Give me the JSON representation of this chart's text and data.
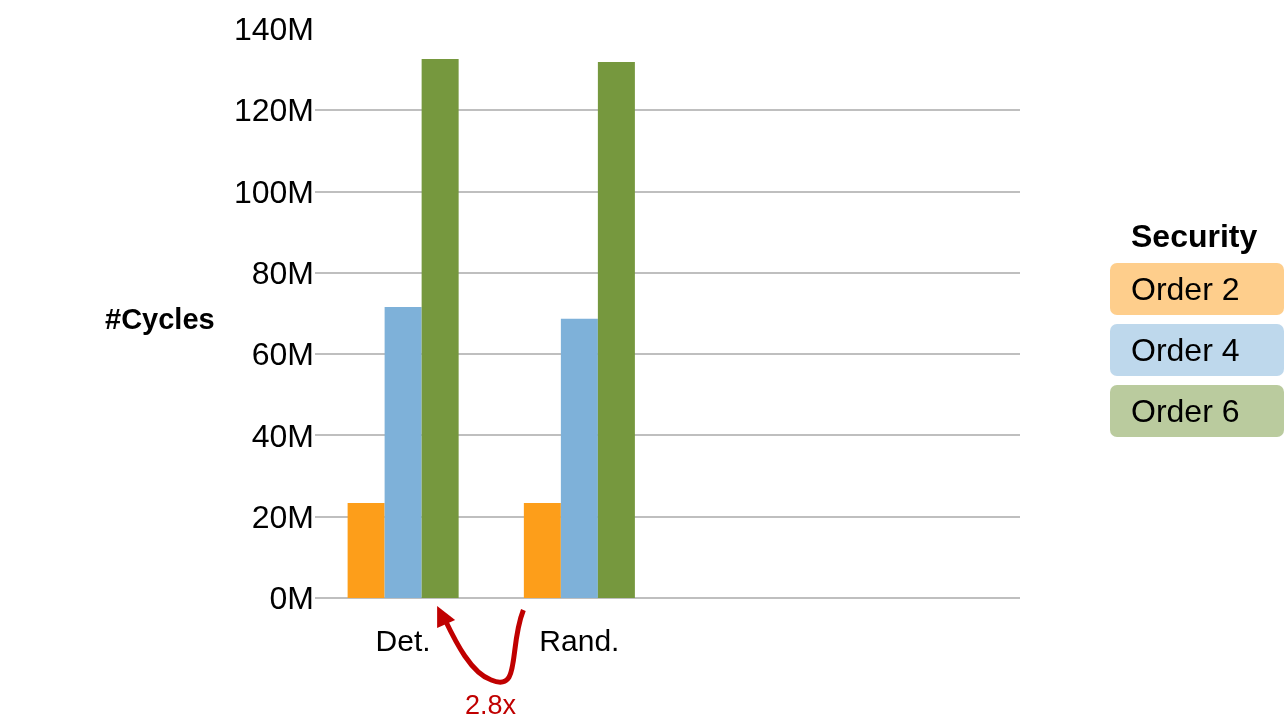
{
  "chart_data": {
    "type": "bar",
    "ylabel": "#Cycles",
    "legend_title": "Security",
    "legend": "right",
    "grid": "y",
    "categories": [
      "Det.",
      "Rand.",
      null,
      null
    ],
    "series": [
      {
        "name": "Order 2",
        "color": "#fd9e1a",
        "values": [
          23.4,
          23.4,
          null,
          null
        ]
      },
      {
        "name": "Order 4",
        "color": "#7eb1d9",
        "values": [
          71.6,
          68.7,
          null,
          null
        ]
      },
      {
        "name": "Order 6",
        "color": "#76983e",
        "values": [
          132.6,
          131.9,
          null,
          null
        ]
      }
    ],
    "ylim": [
      0,
      140
    ],
    "yticks": [
      {
        "value": 0,
        "label": "0M"
      },
      {
        "value": 20,
        "label": "20M"
      },
      {
        "value": 40,
        "label": "40M"
      },
      {
        "value": 60,
        "label": "60M"
      },
      {
        "value": 80,
        "label": "80M"
      },
      {
        "value": 100,
        "label": "100M"
      },
      {
        "value": 120,
        "label": "120M"
      },
      {
        "value": 140,
        "label": "140M"
      }
    ],
    "annotations": [
      "2.8x"
    ]
  }
}
